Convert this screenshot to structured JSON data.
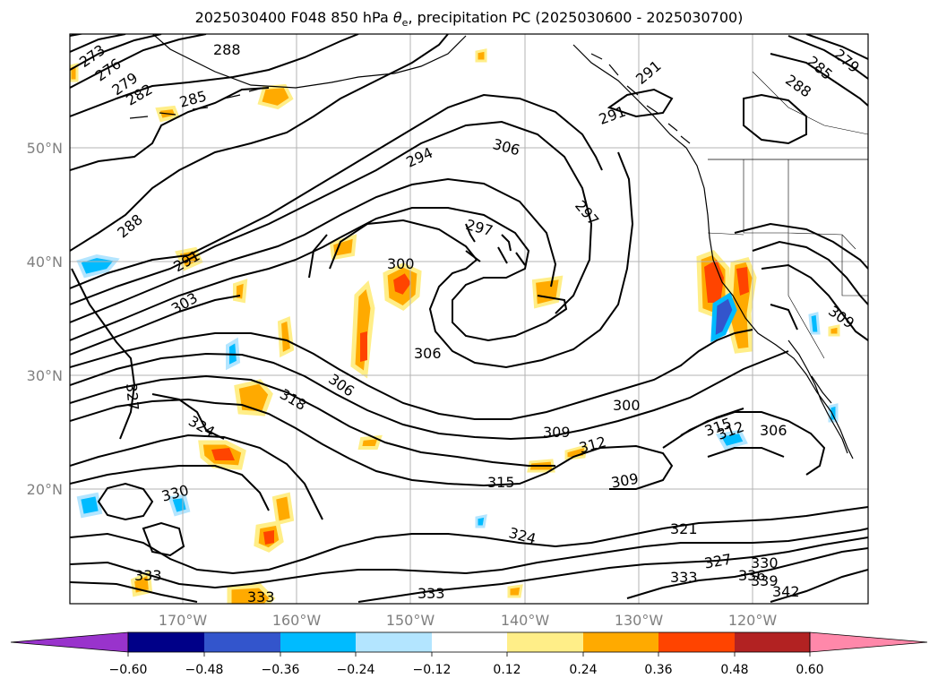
{
  "title": {
    "prefix": "2025030400 F048 850 hPa ",
    "theta_symbol": "θ",
    "theta_subscript": "e",
    "suffix": ", precipitation PC (2025030600 - 2025030700)"
  },
  "latitude_labels": [
    "50°N",
    "40°N",
    "30°N",
    "20°N"
  ],
  "longitude_labels": [
    "170°W",
    "160°W",
    "150°W",
    "140°W",
    "130°W",
    "120°W"
  ],
  "contour_labels": [
    {
      "text": "273"
    },
    {
      "text": "276"
    },
    {
      "text": "279"
    },
    {
      "text": "282"
    },
    {
      "text": "285"
    },
    {
      "text": "288"
    },
    {
      "text": "288"
    },
    {
      "text": "291"
    },
    {
      "text": "294"
    },
    {
      "text": "303"
    },
    {
      "text": "306"
    },
    {
      "text": "297"
    },
    {
      "text": "300"
    },
    {
      "text": "306"
    },
    {
      "text": "297"
    },
    {
      "text": "291"
    },
    {
      "text": "291"
    },
    {
      "text": "288"
    },
    {
      "text": "285"
    },
    {
      "text": "279"
    },
    {
      "text": "327"
    },
    {
      "text": "318"
    },
    {
      "text": "306"
    },
    {
      "text": "324"
    },
    {
      "text": "330"
    },
    {
      "text": "333"
    },
    {
      "text": "333"
    },
    {
      "text": "333"
    },
    {
      "text": "324"
    },
    {
      "text": "315"
    },
    {
      "text": "309"
    },
    {
      "text": "312"
    },
    {
      "text": "309"
    },
    {
      "text": "300"
    },
    {
      "text": "315"
    },
    {
      "text": "312"
    },
    {
      "text": "306"
    },
    {
      "text": "309"
    },
    {
      "text": "321"
    },
    {
      "text": "327"
    },
    {
      "text": "330"
    },
    {
      "text": "333"
    },
    {
      "text": "336"
    },
    {
      "text": "339"
    },
    {
      "text": "342"
    }
  ],
  "colorbar": {
    "colors": [
      "#9933cc",
      "#000088",
      "#3355cc",
      "#00bbff",
      "#b3e5ff",
      "#ffffff",
      "#ffee88",
      "#ffaa00",
      "#ff4400",
      "#b22222",
      "#ff88aa"
    ],
    "tick_labels": [
      "−0.60",
      "−0.48",
      "−0.36",
      "−0.24",
      "−0.12",
      "0.12",
      "0.24",
      "0.36",
      "0.48",
      "0.60"
    ]
  }
}
